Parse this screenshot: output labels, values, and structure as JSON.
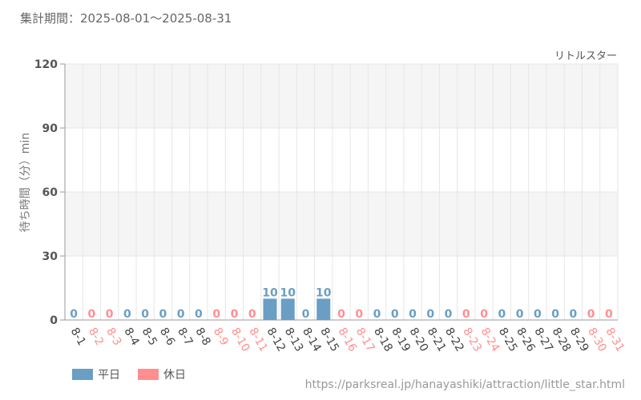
{
  "header": {
    "period_label": "集計期間：2025-08-01～2025-08-31"
  },
  "footer": {
    "source_url": "https://parksreal.jp/hanayashiki/attraction/little_star.html"
  },
  "legend": {
    "weekday_label": "平日",
    "holiday_label": "休日"
  },
  "colors": {
    "weekday": "#6a9ec4",
    "holiday": "#ff8f8f",
    "grid_band": "#f5f5f5",
    "axis_text": "#555555"
  },
  "chart_data": {
    "type": "bar",
    "title": "",
    "series_label": "リトルスター",
    "ylabel": "待ち時間（分）min",
    "xlabel": "",
    "ylim": [
      0,
      120
    ],
    "yticks": [
      0,
      30,
      60,
      90,
      120
    ],
    "grid": true,
    "legend_position": "bottom-left",
    "categories": [
      "8-1",
      "8-2",
      "8-3",
      "8-4",
      "8-5",
      "8-6",
      "8-7",
      "8-8",
      "8-9",
      "8-10",
      "8-11",
      "8-12",
      "8-13",
      "8-14",
      "8-15",
      "8-16",
      "8-17",
      "8-18",
      "8-19",
      "8-20",
      "8-21",
      "8-22",
      "8-23",
      "8-24",
      "8-25",
      "8-26",
      "8-27",
      "8-28",
      "8-29",
      "8-30",
      "8-31"
    ],
    "values": [
      0,
      0,
      0,
      0,
      0,
      0,
      0,
      0,
      0,
      0,
      0,
      10,
      10,
      0,
      10,
      0,
      0,
      0,
      0,
      0,
      0,
      0,
      0,
      0,
      0,
      0,
      0,
      0,
      0,
      0,
      0
    ],
    "day_type": [
      "weekday",
      "holiday",
      "holiday",
      "weekday",
      "weekday",
      "weekday",
      "weekday",
      "weekday",
      "holiday",
      "holiday",
      "holiday",
      "weekday",
      "weekday",
      "weekday",
      "weekday",
      "holiday",
      "holiday",
      "weekday",
      "weekday",
      "weekday",
      "weekday",
      "weekday",
      "holiday",
      "holiday",
      "weekday",
      "weekday",
      "weekday",
      "weekday",
      "weekday",
      "holiday",
      "holiday"
    ]
  }
}
